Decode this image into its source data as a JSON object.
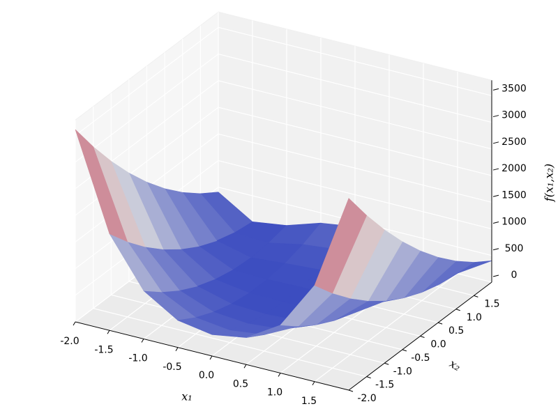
{
  "chart_data": {
    "type": "surface",
    "x": [
      -2,
      -1.5,
      -1,
      -0.5,
      0,
      0.5,
      1,
      1.5,
      2
    ],
    "y": [
      -2,
      -1.5,
      -1,
      -0.5,
      0,
      0.5,
      1,
      1.5,
      2
    ],
    "z": [
      [
        3609,
        3034,
        2509,
        2034,
        1609,
        1234,
        909,
        634,
        409
      ],
      [
        1812.5,
        1412.5,
        1062.5,
        762.5,
        512.5,
        312.5,
        162.5,
        62.5,
        12.5
      ],
      [
        904,
        629,
        404,
        229,
        104,
        29,
        4,
        29,
        104
      ],
      [
        508.5,
        308.5,
        158.5,
        58.5,
        8.5,
        8.5,
        58.5,
        158.5,
        308.5
      ],
      [
        401,
        226,
        101,
        26,
        1,
        26,
        101,
        226,
        401
      ],
      [
        506.5,
        306.5,
        156.5,
        56.5,
        6.5,
        6.5,
        56.5,
        156.5,
        306.5
      ],
      [
        900,
        625,
        400,
        225,
        100,
        25,
        0,
        25,
        100
      ],
      [
        1806.5,
        1406.5,
        1056.5,
        756.5,
        506.5,
        306.5,
        156.5,
        56.5,
        6.5
      ],
      [
        3601,
        3026,
        2501,
        2026,
        1601,
        1226,
        901,
        626,
        401
      ]
    ],
    "xlim": [
      -2,
      2
    ],
    "ylim": [
      -2,
      2
    ],
    "zlim": [
      0,
      3609
    ],
    "xticks": [
      {
        "value": -2,
        "label": "-2.0"
      },
      {
        "value": -1.5,
        "label": "-1.5"
      },
      {
        "value": -1,
        "label": "-1.0"
      },
      {
        "value": -0.5,
        "label": "-0.5"
      },
      {
        "value": 0,
        "label": "0.0"
      },
      {
        "value": 0.5,
        "label": "0.5"
      },
      {
        "value": 1,
        "label": "1.0"
      },
      {
        "value": 1.5,
        "label": "1.5"
      }
    ],
    "yticks": [
      {
        "value": -2,
        "label": "-2.0"
      },
      {
        "value": -1.5,
        "label": "-1.5"
      },
      {
        "value": -1,
        "label": "-1.0"
      },
      {
        "value": -0.5,
        "label": "-0.5"
      },
      {
        "value": 0,
        "label": "0.0"
      },
      {
        "value": 0.5,
        "label": "0.5"
      },
      {
        "value": 1,
        "label": "1.0"
      },
      {
        "value": 1.5,
        "label": "1.5"
      }
    ],
    "zticks": [
      0,
      500,
      1000,
      1500,
      2000,
      2500,
      3000,
      3500
    ],
    "xlabel": "x₁",
    "ylabel": "x₂",
    "zlabel": "f(x₁,x₂)",
    "colormap": [
      "#3b4cc0",
      "#dddddd",
      "#b40426"
    ],
    "grid": true
  }
}
